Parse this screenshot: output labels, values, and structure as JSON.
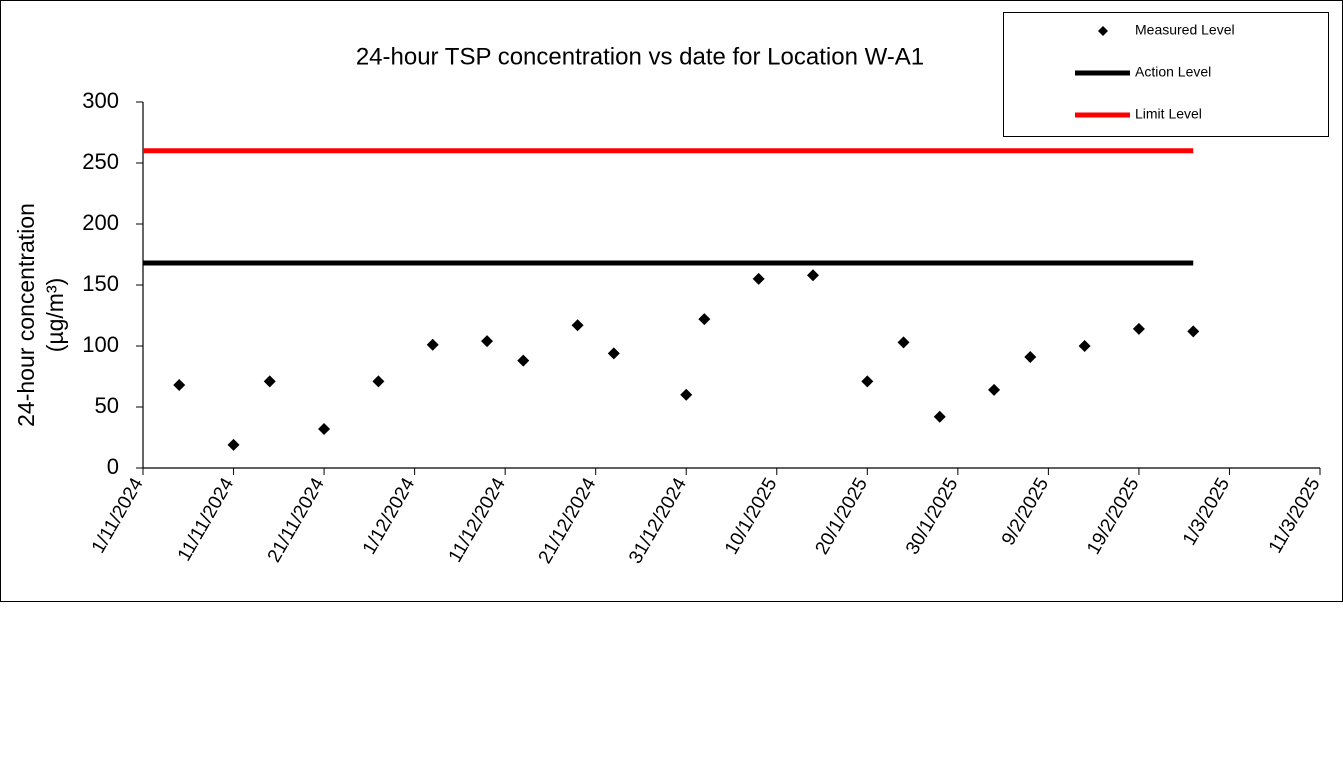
{
  "chart_data": {
    "type": "scatter",
    "title": "24-hour TSP concentration vs date for Location W-A1",
    "y_label": [
      "24-hour concentration",
      "(µg/m³)"
    ],
    "xlim": [
      "1/11/2024",
      "11/3/2025"
    ],
    "xticks": [
      "1/11/2024",
      "11/11/2024",
      "21/11/2024",
      "1/12/2024",
      "11/12/2024",
      "21/12/2024",
      "31/12/2024",
      "10/1/2025",
      "20/1/2025",
      "30/1/2025",
      "9/2/2025",
      "19/2/2025",
      "1/3/2025",
      "11/3/2025"
    ],
    "ylim": [
      0,
      300
    ],
    "yticks": [
      0,
      50,
      100,
      150,
      200,
      250,
      300
    ],
    "legend": "top-right",
    "series": [
      {
        "name": "Measured Level",
        "color": "#000000",
        "mode": "markers",
        "x": [
          "5/11/2024",
          "11/11/2024",
          "15/11/2024",
          "21/11/2024",
          "27/11/2024",
          "3/12/2024",
          "9/12/2024",
          "13/12/2024",
          "19/12/2024",
          "23/12/2024",
          "31/12/2024",
          "2/1/2025",
          "8/1/2025",
          "14/1/2025",
          "20/1/2025",
          "24/1/2025",
          "28/1/2025",
          "3/2/2025",
          "7/2/2025",
          "13/2/2025",
          "19/2/2025",
          "25/2/2025"
        ],
        "values": [
          68,
          19,
          71,
          32,
          71,
          101,
          104,
          88,
          117,
          94,
          60,
          122,
          155,
          158,
          71,
          103,
          42,
          64,
          91,
          100,
          114,
          112
        ]
      },
      {
        "name": "Action Level",
        "color": "#000000",
        "mode": "line",
        "x": [
          "1/11/2024",
          "25/2/2025"
        ],
        "values": [
          168,
          168
        ]
      },
      {
        "name": "Limit Level",
        "color": "#ff0000",
        "mode": "line",
        "x": [
          "1/11/2024",
          "25/2/2025"
        ],
        "values": [
          260,
          260
        ]
      }
    ]
  }
}
